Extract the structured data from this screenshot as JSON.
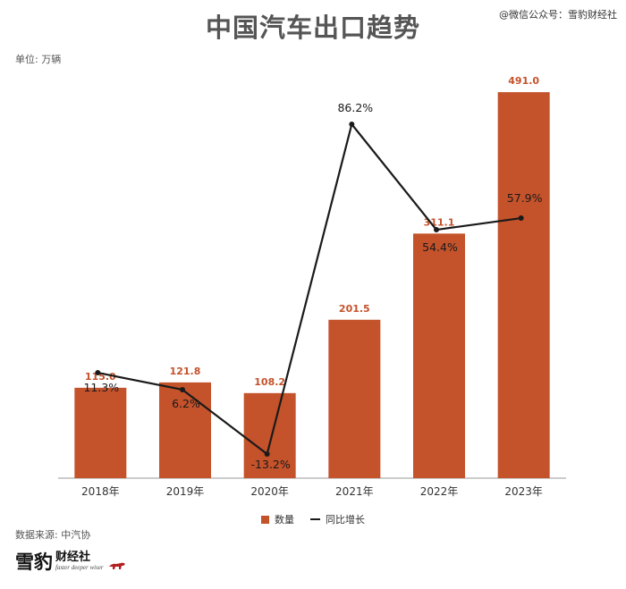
{
  "header": {
    "title": "中国汽车出口趋势",
    "source_tag": "@微信公众号：雪豹财经社"
  },
  "unit_label": "单位: 万辆",
  "legend": {
    "bar_label": "数量",
    "line_label": "同比增长"
  },
  "footer": {
    "data_source": "数据来源: 中汽协",
    "brand_main": "雪豹",
    "brand_name": "财经社",
    "brand_tagline": "faster deeper wiser"
  },
  "colors": {
    "bar": "#c4522b",
    "bar_label": "#c4522b",
    "line": "#1a1a1a",
    "axis": "#999999"
  },
  "chart_data": {
    "type": "bar",
    "title": "中国汽车出口趋势",
    "categories": [
      "2018年",
      "2019年",
      "2020年",
      "2021年",
      "2022年",
      "2023年"
    ],
    "series": [
      {
        "name": "数量",
        "type": "bar",
        "values": [
          115.0,
          121.8,
          108.2,
          201.5,
          311.1,
          491.0
        ],
        "labels": [
          "115.0",
          "121.8",
          "108.2",
          "201.5",
          "311.1",
          "491.0"
        ]
      },
      {
        "name": "同比增长",
        "type": "line",
        "values": [
          11.3,
          6.2,
          -13.2,
          86.2,
          54.4,
          57.9
        ],
        "labels": [
          "11.3%",
          "6.2%",
          "-13.2%",
          "86.2%",
          "54.4%",
          "57.9%"
        ]
      }
    ],
    "ylabel": "单位: 万辆",
    "ylim_left": [
      0,
      500
    ],
    "ylim_right": [
      -20,
      100
    ],
    "grid": false,
    "legend_position": "bottom-center"
  }
}
